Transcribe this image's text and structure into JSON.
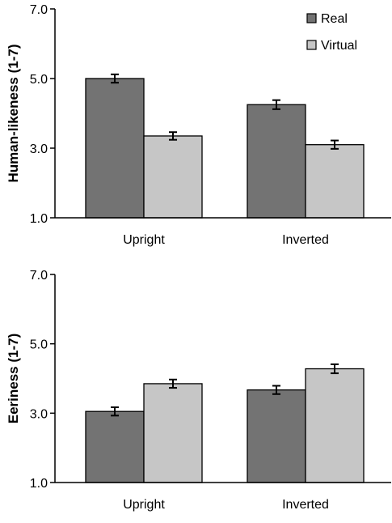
{
  "chart_data": [
    {
      "type": "bar",
      "categories": [
        "Upright",
        "Inverted"
      ],
      "ylabel": "Human-likeness (1-7)",
      "xlabel": "",
      "ylim": [
        1.0,
        7.0
      ],
      "yticks": [
        "1.0",
        "3.0",
        "5.0",
        "7.0"
      ],
      "series": [
        {
          "name": "Real",
          "values": [
            5.0,
            4.25
          ],
          "errors": [
            0.12,
            0.13
          ],
          "color": "#737373"
        },
        {
          "name": "Virtual",
          "values": [
            3.35,
            3.1
          ],
          "errors": [
            0.11,
            0.12
          ],
          "color": "#c6c6c6"
        }
      ],
      "legend": "top-right",
      "grid": false
    },
    {
      "type": "bar",
      "categories": [
        "Upright",
        "Inverted"
      ],
      "ylabel": "Eeriness (1-7)",
      "xlabel": "",
      "ylim": [
        1.0,
        7.0
      ],
      "yticks": [
        "1.0",
        "3.0",
        "5.0",
        "7.0"
      ],
      "series": [
        {
          "name": "Real",
          "values": [
            3.05,
            3.67
          ],
          "errors": [
            0.12,
            0.12
          ],
          "color": "#737373"
        },
        {
          "name": "Virtual",
          "values": [
            3.85,
            4.28
          ],
          "errors": [
            0.12,
            0.13
          ],
          "color": "#c6c6c6"
        }
      ],
      "grid": false
    }
  ]
}
